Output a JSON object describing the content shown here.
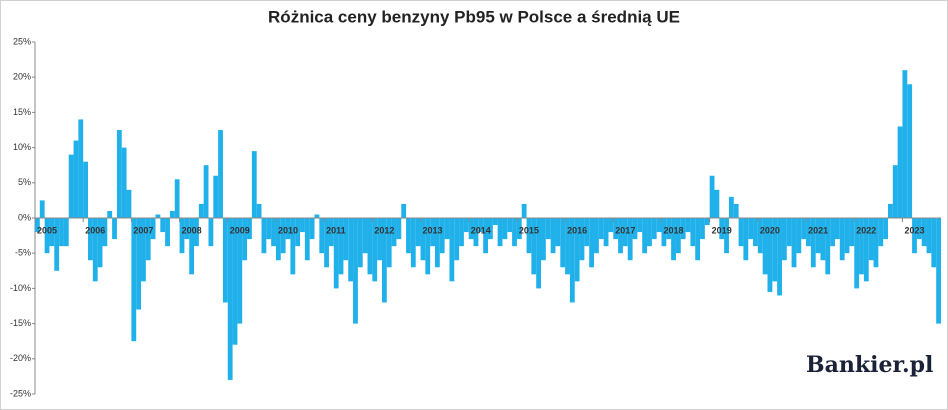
{
  "chart_data": {
    "type": "bar",
    "title": "Różnica ceny benzyny Pb95 w Polsce a średnią UE",
    "logo": "Bankier.pl",
    "color": "#21b1ea",
    "grid": false,
    "xlim": [
      2005,
      2023.8
    ],
    "xticks": [
      2005,
      2006,
      2007,
      2008,
      2009,
      2010,
      2011,
      2012,
      2013,
      2014,
      2015,
      2016,
      2017,
      2018,
      2019,
      2020,
      2021,
      2022,
      2023
    ],
    "ylim": [
      -25,
      25
    ],
    "yticks": [
      {
        "value": -25,
        "label": "-25%"
      },
      {
        "value": -20,
        "label": "-20%"
      },
      {
        "value": -15,
        "label": "-15%"
      },
      {
        "value": -10,
        "label": "-10%"
      },
      {
        "value": -5,
        "label": "-5%"
      },
      {
        "value": 0,
        "label": "0%"
      },
      {
        "value": 5,
        "label": "5%"
      },
      {
        "value": 10,
        "label": "10%"
      },
      {
        "value": 15,
        "label": "15%"
      },
      {
        "value": 20,
        "label": "20%"
      },
      {
        "value": 25,
        "label": "25%"
      }
    ],
    "x": [
      2005.0,
      2005.1,
      2005.2,
      2005.3,
      2005.4,
      2005.5,
      2005.6,
      2005.7,
      2005.8,
      2005.9,
      2006.0,
      2006.1,
      2006.2,
      2006.3,
      2006.4,
      2006.5,
      2006.6,
      2006.7,
      2006.8,
      2006.9,
      2007.0,
      2007.1,
      2007.2,
      2007.3,
      2007.4,
      2007.5,
      2007.6,
      2007.7,
      2007.8,
      2007.9,
      2008.0,
      2008.1,
      2008.2,
      2008.3,
      2008.4,
      2008.5,
      2008.6,
      2008.7,
      2008.8,
      2008.9,
      2009.0,
      2009.1,
      2009.2,
      2009.3,
      2009.4,
      2009.5,
      2009.6,
      2009.7,
      2009.8,
      2009.9,
      2010.0,
      2010.1,
      2010.2,
      2010.3,
      2010.4,
      2010.5,
      2010.6,
      2010.7,
      2010.8,
      2010.9,
      2011.0,
      2011.1,
      2011.2,
      2011.3,
      2011.4,
      2011.5,
      2011.6,
      2011.7,
      2011.8,
      2011.9,
      2012.0,
      2012.1,
      2012.2,
      2012.3,
      2012.4,
      2012.5,
      2012.6,
      2012.7,
      2012.8,
      2012.9,
      2013.0,
      2013.1,
      2013.2,
      2013.3,
      2013.4,
      2013.5,
      2013.6,
      2013.7,
      2013.8,
      2013.9,
      2014.0,
      2014.1,
      2014.2,
      2014.3,
      2014.4,
      2014.5,
      2014.6,
      2014.7,
      2014.8,
      2014.9,
      2015.0,
      2015.1,
      2015.2,
      2015.3,
      2015.4,
      2015.5,
      2015.6,
      2015.7,
      2015.8,
      2015.9,
      2016.0,
      2016.1,
      2016.2,
      2016.3,
      2016.4,
      2016.5,
      2016.6,
      2016.7,
      2016.8,
      2016.9,
      2017.0,
      2017.1,
      2017.2,
      2017.3,
      2017.4,
      2017.5,
      2017.6,
      2017.7,
      2017.8,
      2017.9,
      2018.0,
      2018.1,
      2018.2,
      2018.3,
      2018.4,
      2018.5,
      2018.6,
      2018.7,
      2018.8,
      2018.9,
      2019.0,
      2019.1,
      2019.2,
      2019.3,
      2019.4,
      2019.5,
      2019.6,
      2019.7,
      2019.8,
      2019.9,
      2020.0,
      2020.1,
      2020.2,
      2020.3,
      2020.4,
      2020.5,
      2020.6,
      2020.7,
      2020.8,
      2020.9,
      2021.0,
      2021.1,
      2021.2,
      2021.3,
      2021.4,
      2021.5,
      2021.6,
      2021.7,
      2021.8,
      2021.9,
      2022.0,
      2022.1,
      2022.2,
      2022.3,
      2022.4,
      2022.5,
      2022.6,
      2022.7,
      2022.8,
      2022.9,
      2023.0,
      2023.1,
      2023.2,
      2023.3,
      2023.4,
      2023.5,
      2023.6,
      2023.7
    ],
    "values": [
      -2,
      2.5,
      -5,
      -4,
      -7.5,
      -4,
      -4,
      9,
      11,
      14,
      8,
      -6,
      -9,
      -7,
      -4,
      1,
      -3,
      12.5,
      10,
      4,
      -17.5,
      -13,
      -9,
      -6,
      -3,
      0.5,
      -2,
      -4,
      1,
      5.5,
      -5,
      -3,
      -8,
      -4,
      2,
      7.5,
      -4,
      6,
      12.5,
      -12,
      -23,
      -18,
      -15,
      -6,
      -3,
      9.5,
      2,
      -5,
      -3,
      -4,
      -6,
      -5,
      -3,
      -8,
      -4,
      -2,
      -6,
      -3,
      0.5,
      -5,
      -7,
      -4,
      -10,
      -8,
      -6,
      -9,
      -15,
      -7,
      -5,
      -8,
      -9,
      -6,
      -12,
      -7,
      -4,
      -3,
      2,
      -5,
      -7,
      -4,
      -6,
      -8,
      -4,
      -7,
      -5,
      -3,
      -9,
      -6,
      -4,
      -2,
      -3,
      -4,
      -2,
      -5,
      -3,
      -1,
      -4,
      -3,
      -2,
      -4,
      -3,
      2,
      -5,
      -8,
      -10,
      -6,
      -3,
      -5,
      -4,
      -7,
      -8,
      -12,
      -9,
      -6,
      -4,
      -7,
      -5,
      -3,
      -4,
      -2,
      -3,
      -5,
      -4,
      -6,
      -3,
      -2,
      -5,
      -4,
      -3,
      -2,
      -4,
      -3,
      -6,
      -5,
      -3,
      -2,
      -4,
      -6,
      -3,
      -1,
      6,
      4,
      -3,
      -5,
      3,
      2,
      -4,
      -6,
      -3,
      -4,
      -5,
      -8,
      -10.5,
      -9,
      -11,
      -6,
      -4,
      -7,
      -5,
      -3,
      -4,
      -7,
      -5,
      -6,
      -8,
      -4,
      -3,
      -6,
      -5,
      -4,
      -10,
      -8,
      -9,
      -6,
      -7,
      -4,
      -3,
      2,
      7.5,
      13,
      21,
      19,
      -5,
      -3,
      -4,
      -5,
      -7,
      -15
    ]
  }
}
